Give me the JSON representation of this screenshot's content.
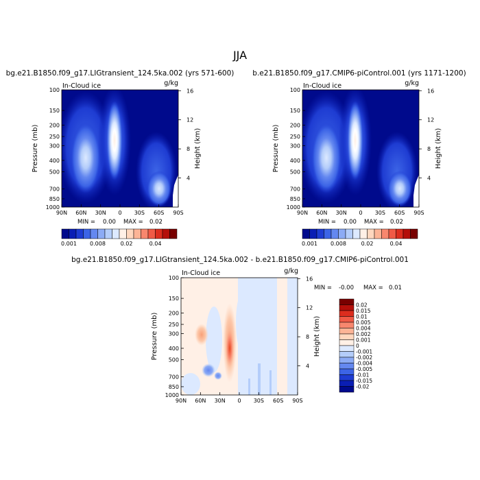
{
  "figure": {
    "season": "JJA"
  },
  "panels": [
    {
      "title": "bg.e21.B1850.f09_g17.LIGtransient_124.5ka.002 (yrs 571-600)",
      "field": "In-Cloud ice",
      "units": "g/kg",
      "min_label": "MIN =",
      "min_value": "0.00",
      "max_label": "MAX =",
      "max_value": "0.02"
    },
    {
      "title": "b.e21.B1850.f09_g17.CMIP6-piControl.001 (yrs 1171-1200)",
      "field": "In-Cloud ice",
      "units": "g/kg",
      "min_label": "MIN =",
      "min_value": "0.00",
      "max_label": "MAX =",
      "max_value": "0.02"
    },
    {
      "title": "bg.e21.B1850.f09_g17.LIGtransient_124.5ka.002 - b.e21.B1850.f09_g17.CMIP6-piControl.001",
      "field": "In-Cloud ice",
      "units": "g/kg",
      "min_label": "MIN =",
      "min_value": "-0.00",
      "max_label": "MAX =",
      "max_value": "0.01"
    }
  ],
  "axes": {
    "ylabel": "Pressure (mb)",
    "ylabel_right": "Height (km)",
    "pressure_ticks": [
      "100",
      "150",
      "200",
      "250",
      "300",
      "400",
      "500",
      "700",
      "850",
      "1000"
    ],
    "height_ticks": [
      "16",
      "12",
      "8",
      "4"
    ],
    "lat_ticks": [
      "90N",
      "60N",
      "30N",
      "0",
      "30S",
      "60S",
      "90S"
    ]
  },
  "colorbars": {
    "main_labels": [
      "0.001",
      "0.008",
      "0.02",
      "0.04"
    ],
    "main_colors": [
      "#000a8c",
      "#0a1eb4",
      "#1e3cd2",
      "#3c64e6",
      "#6488f0",
      "#8cabf5",
      "#b4cdfa",
      "#dce9ff",
      "#fff0e6",
      "#ffd7be",
      "#fcb496",
      "#f8876e",
      "#f05a46",
      "#dc2d1e",
      "#b40f0a",
      "#780000"
    ],
    "diff_labels": [
      "0.02",
      "0.015",
      "0.01",
      "0.005",
      "0.004",
      "0.002",
      "0.001",
      "0",
      "-0.001",
      "-0.002",
      "-0.004",
      "-0.005",
      "-0.01",
      "-0.015",
      "-0.02"
    ],
    "diff_colors": [
      "#780000",
      "#b40f0a",
      "#dc2d1e",
      "#f05a46",
      "#f8876e",
      "#fcb496",
      "#ffd7be",
      "#fff0e6",
      "#dce9ff",
      "#b4cdfa",
      "#8cabf5",
      "#6488f0",
      "#3c64e6",
      "#1e3cd2",
      "#0a1eb4",
      "#000a8c"
    ]
  },
  "chart_data": [
    {
      "type": "heatmap",
      "title": "bg.e21.B1850.f09_g17.LIGtransient_124.5ka.002 (yrs 571-600)",
      "ylabel": "Pressure (mb)",
      "xlim": [
        "90N",
        "90S"
      ],
      "ylim": [
        1000,
        100
      ],
      "range": [
        0.0,
        0.02
      ],
      "features": [
        {
          "name": "tropical_column",
          "lat": 7,
          "p_top": 150,
          "p_bottom": 700,
          "peak": 0.02
        },
        {
          "name": "nh_midlat",
          "lat": 50,
          "p_top": 200,
          "p_bottom": 850,
          "peak": 0.008
        },
        {
          "name": "sh_midlat",
          "lat": -50,
          "p_top": 300,
          "p_bottom": 950,
          "peak": 0.006
        }
      ]
    },
    {
      "type": "heatmap",
      "title": "b.e21.B1850.f09_g17.CMIP6-piControl.001 (yrs 1171-1200)",
      "ylabel": "Pressure (mb)",
      "xlim": [
        "90N",
        "90S"
      ],
      "ylim": [
        1000,
        100
      ],
      "range": [
        0.0,
        0.02
      ],
      "features": [
        {
          "name": "tropical_column",
          "lat": 7,
          "p_top": 150,
          "p_bottom": 700,
          "peak": 0.02
        },
        {
          "name": "nh_midlat",
          "lat": 50,
          "p_top": 200,
          "p_bottom": 850,
          "peak": 0.008
        },
        {
          "name": "sh_midlat",
          "lat": -50,
          "p_top": 300,
          "p_bottom": 950,
          "peak": 0.006
        }
      ]
    },
    {
      "type": "heatmap",
      "title": "bg.e21.B1850.f09_g17.LIGtransient_124.5ka.002 - b.e21.B1850.f09_g17.CMIP6-piControl.001",
      "ylabel": "Pressure (mb)",
      "xlim": [
        "90N",
        "90S"
      ],
      "ylim": [
        1000,
        100
      ],
      "range": [
        -0.002,
        0.01
      ],
      "features": [
        {
          "name": "tropical_positive",
          "lat": 12,
          "p_top": 200,
          "p_bottom": 600,
          "value": 0.01
        },
        {
          "name": "nh_positive",
          "lat": 55,
          "p_top": 250,
          "p_bottom": 450,
          "value": 0.002
        },
        {
          "name": "nh_negative_low",
          "lat": 45,
          "p_top": 550,
          "p_bottom": 800,
          "value": -0.002
        },
        {
          "name": "nh_weak_negative",
          "lat": 25,
          "p_top": 250,
          "p_bottom": 700,
          "value": -0.001
        },
        {
          "name": "sh_weak_negative",
          "lat": -20,
          "p_top": 100,
          "p_bottom": 1000,
          "value": -0.001
        }
      ]
    }
  ]
}
